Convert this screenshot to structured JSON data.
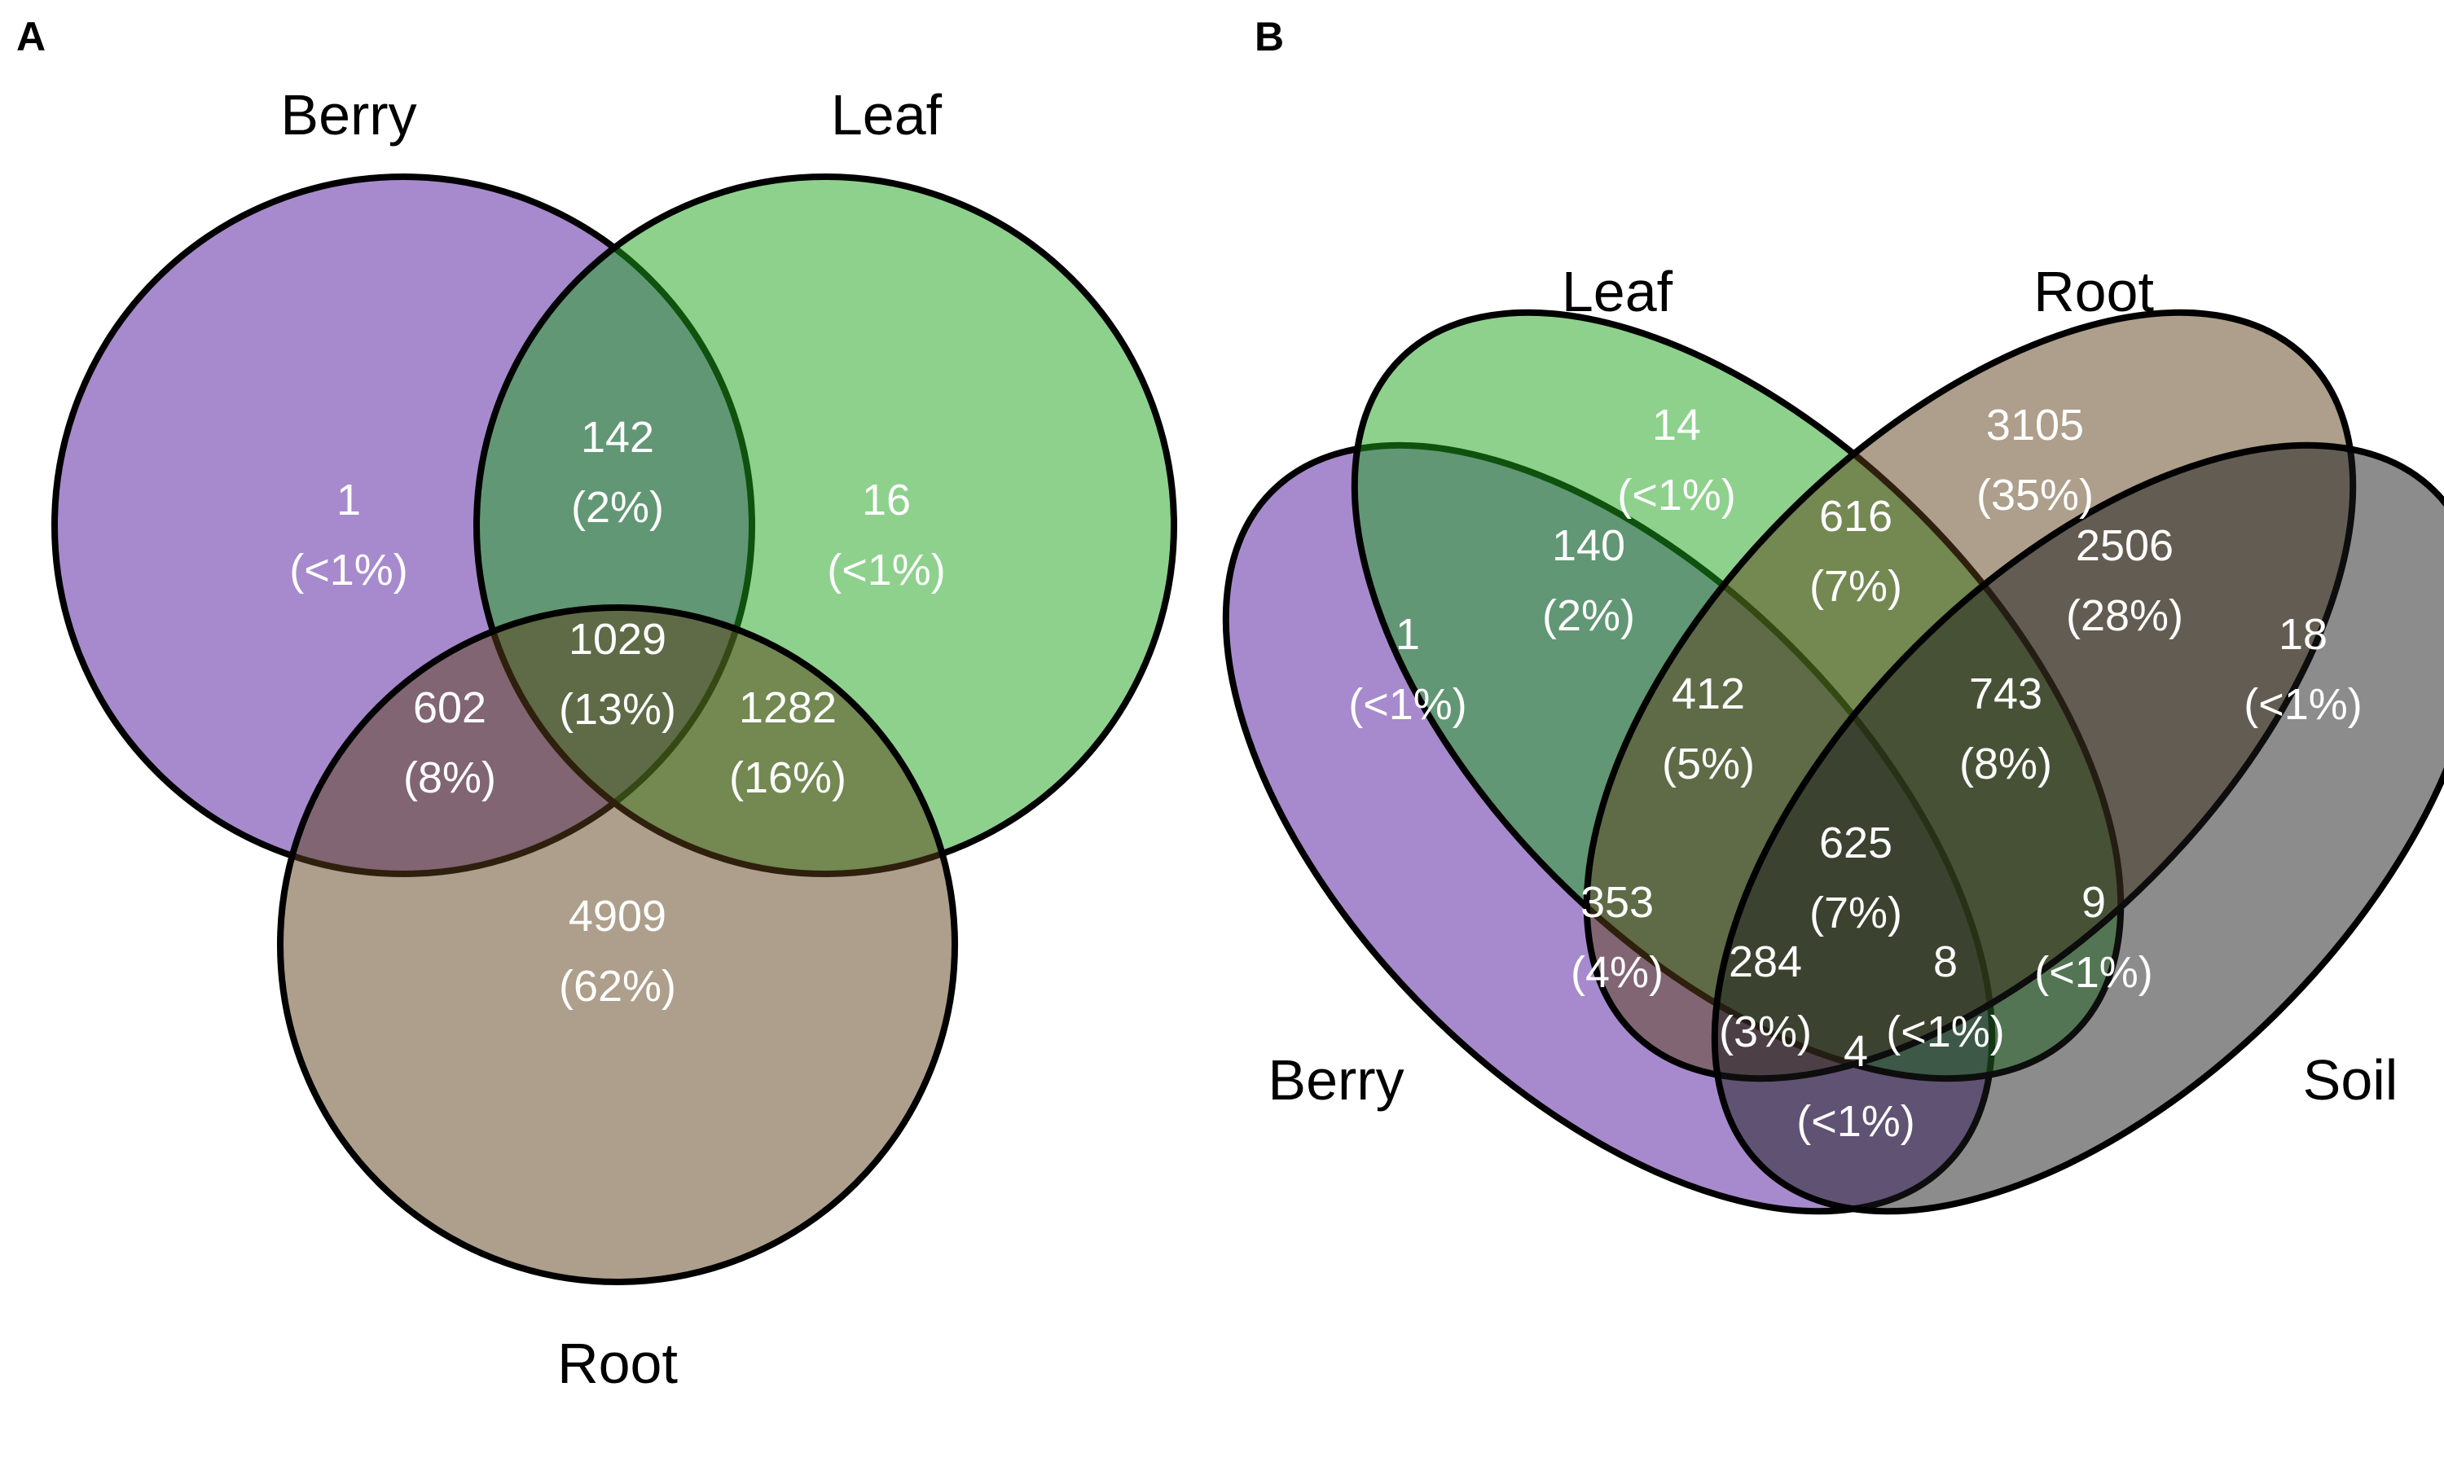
{
  "colors": {
    "berry": "#4f159c",
    "leaf": "#1ca41c",
    "root": "#5c3f18",
    "soil": "#1a1a1a",
    "outline": "#000000",
    "region_text": "#ffffff"
  },
  "panel_a": {
    "letter": "A",
    "sets": [
      {
        "key": "berry",
        "label": "Berry"
      },
      {
        "key": "leaf",
        "label": "Leaf"
      },
      {
        "key": "root",
        "label": "Root"
      }
    ],
    "regions": [
      {
        "sets": [
          "berry"
        ],
        "count": "1",
        "percent": "(<1%)"
      },
      {
        "sets": [
          "berry",
          "leaf"
        ],
        "count": "142",
        "percent": "(2%)"
      },
      {
        "sets": [
          "leaf"
        ],
        "count": "16",
        "percent": "(<1%)"
      },
      {
        "sets": [
          "berry",
          "leaf",
          "root"
        ],
        "count": "1029",
        "percent": "(13%)"
      },
      {
        "sets": [
          "berry",
          "root"
        ],
        "count": "602",
        "percent": "(8%)"
      },
      {
        "sets": [
          "leaf",
          "root"
        ],
        "count": "1282",
        "percent": "(16%)"
      },
      {
        "sets": [
          "root"
        ],
        "count": "4909",
        "percent": "(62%)"
      }
    ]
  },
  "panel_b": {
    "letter": "B",
    "sets": [
      {
        "key": "leaf",
        "label": "Leaf"
      },
      {
        "key": "root",
        "label": "Root"
      },
      {
        "key": "berry",
        "label": "Berry"
      },
      {
        "key": "soil",
        "label": "Soil"
      }
    ],
    "regions": [
      {
        "sets": [
          "leaf"
        ],
        "count": "14",
        "percent": "(<1%)"
      },
      {
        "sets": [
          "root"
        ],
        "count": "3105",
        "percent": "(35%)"
      },
      {
        "sets": [
          "leaf",
          "root"
        ],
        "count": "616",
        "percent": "(7%)"
      },
      {
        "sets": [
          "berry",
          "leaf"
        ],
        "count": "140",
        "percent": "(2%)"
      },
      {
        "sets": [
          "root",
          "soil"
        ],
        "count": "2506",
        "percent": "(28%)"
      },
      {
        "sets": [
          "berry"
        ],
        "count": "1",
        "percent": "(<1%)"
      },
      {
        "sets": [
          "soil"
        ],
        "count": "18",
        "percent": "(<1%)"
      },
      {
        "sets": [
          "berry",
          "leaf",
          "root"
        ],
        "count": "412",
        "percent": "(5%)"
      },
      {
        "sets": [
          "leaf",
          "root",
          "soil"
        ],
        "count": "743",
        "percent": "(8%)"
      },
      {
        "sets": [
          "berry",
          "leaf",
          "root",
          "soil"
        ],
        "count": "625",
        "percent": "(7%)"
      },
      {
        "sets": [
          "berry",
          "root"
        ],
        "count": "353",
        "percent": "(4%)"
      },
      {
        "sets": [
          "leaf",
          "soil"
        ],
        "count": "9",
        "percent": "(<1%)"
      },
      {
        "sets": [
          "berry",
          "root",
          "soil"
        ],
        "count": "284",
        "percent": "(3%)"
      },
      {
        "sets": [
          "berry",
          "leaf",
          "soil"
        ],
        "count": "8",
        "percent": "(<1%)"
      },
      {
        "sets": [
          "berry",
          "soil"
        ],
        "count": "4",
        "percent": "(<1%)"
      }
    ]
  }
}
